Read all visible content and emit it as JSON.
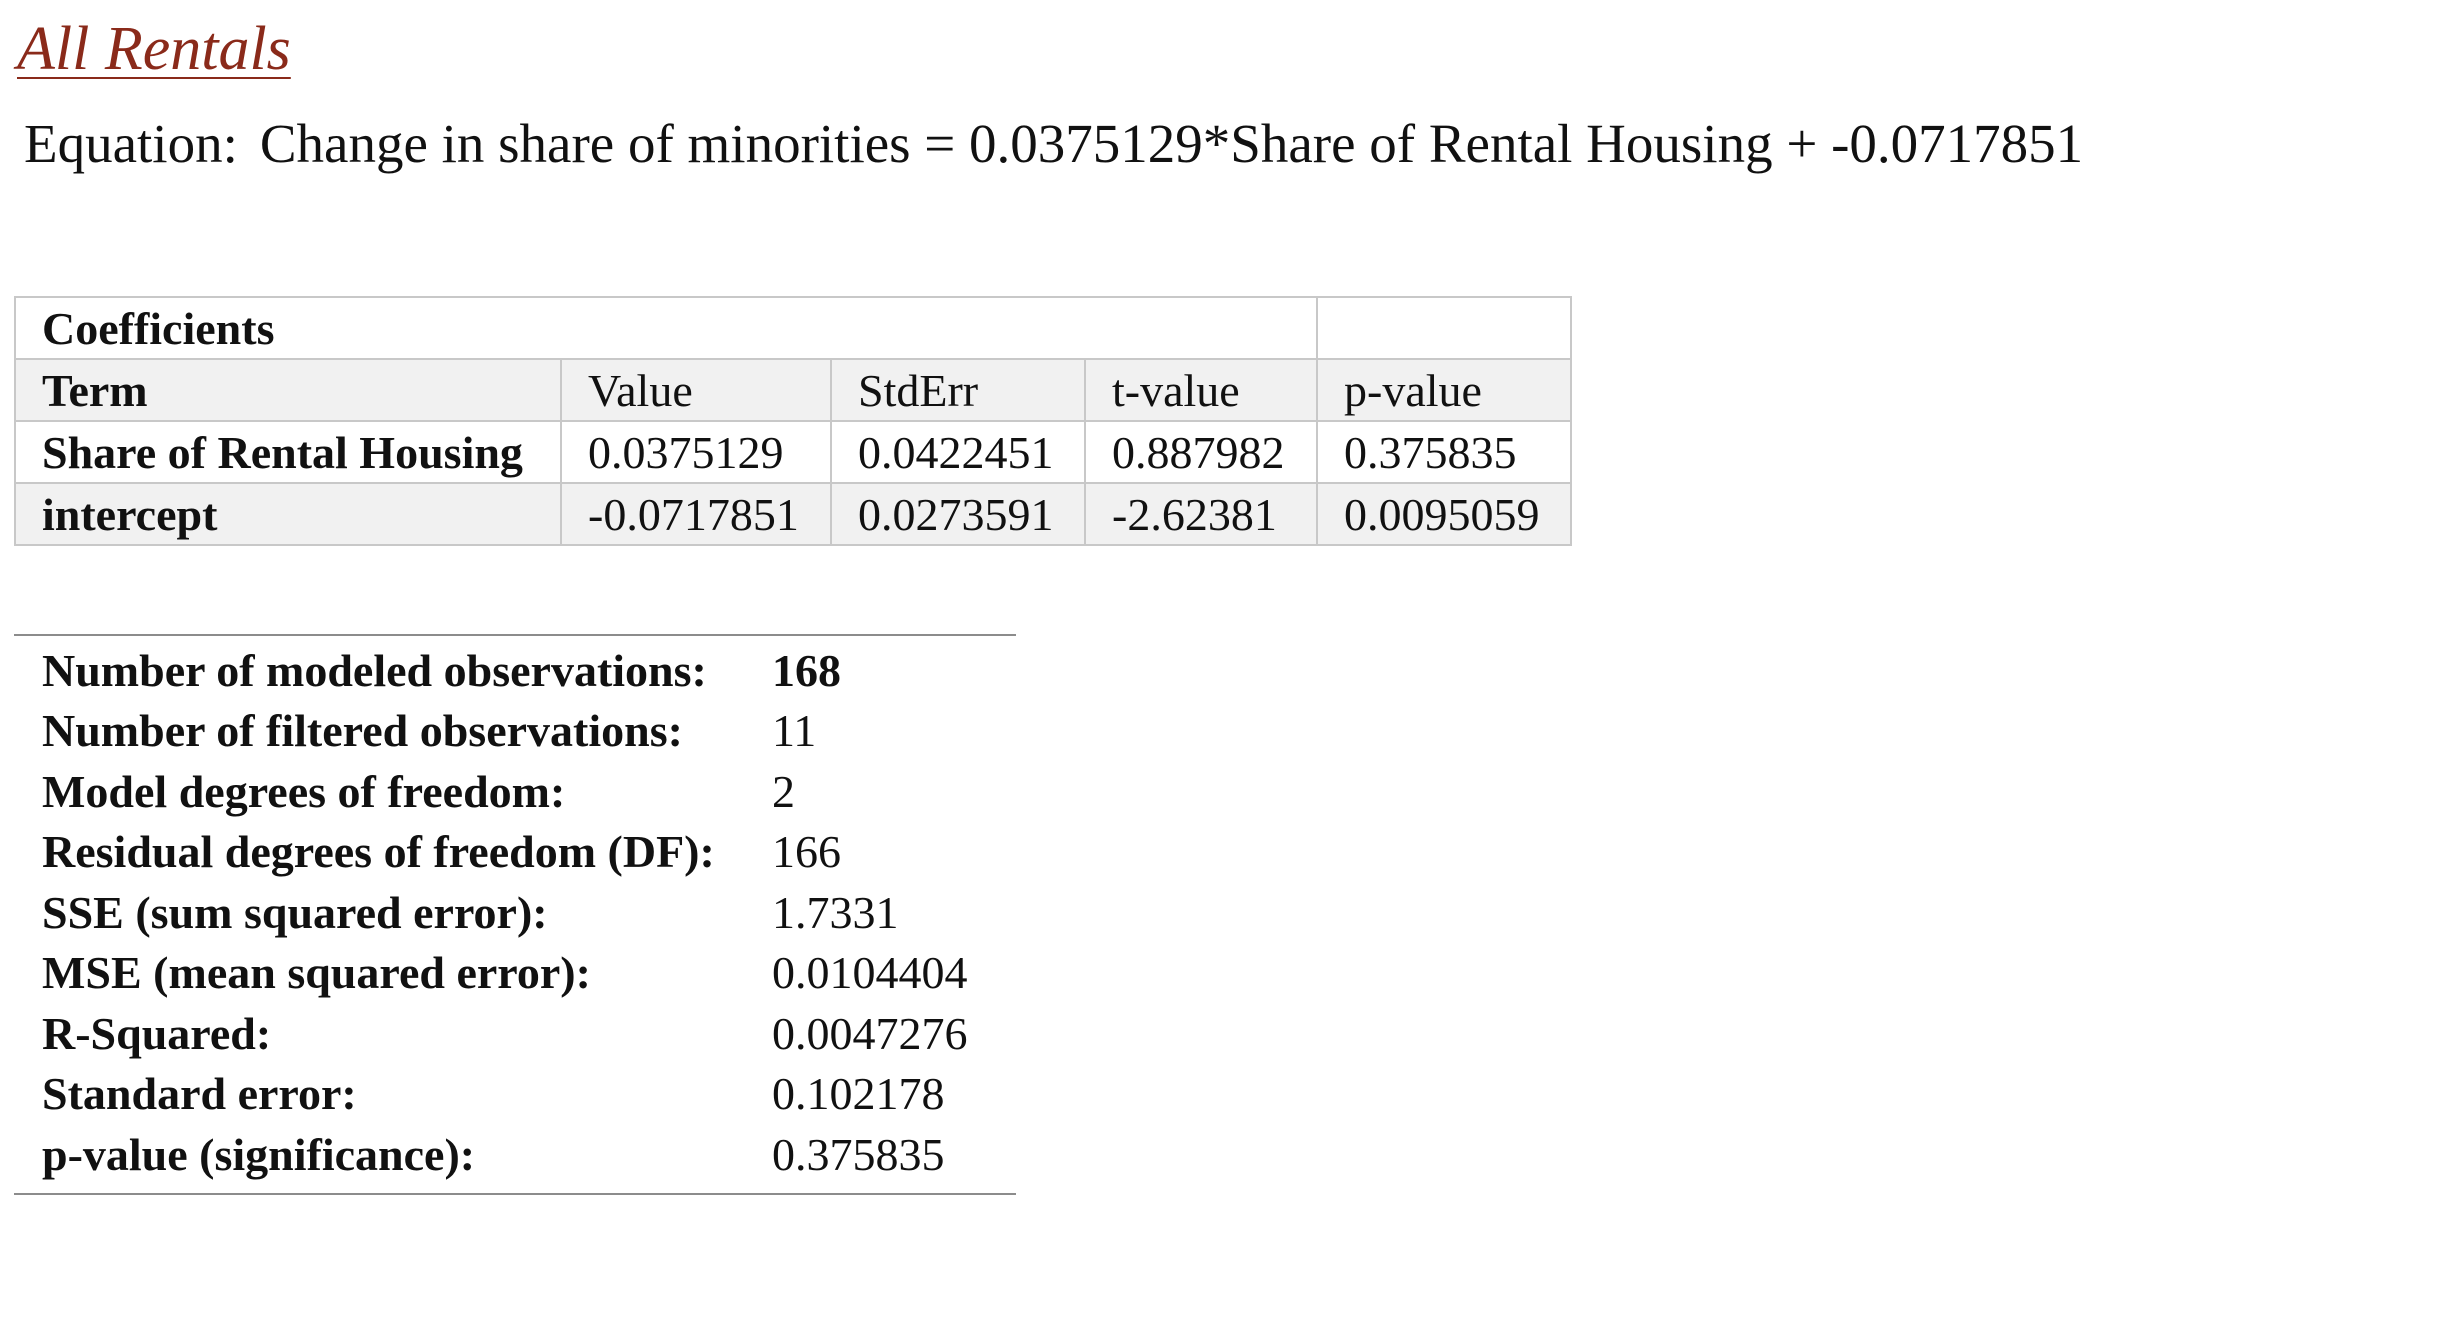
{
  "section": {
    "title": "All Rentals"
  },
  "equation": {
    "label": "Equation:",
    "text": "Change in share of minorities = 0.0375129*Share of Rental Housing + -0.0717851"
  },
  "coefficients": {
    "caption": "Coefficients",
    "headers": [
      "Term",
      "Value",
      "StdErr",
      "t-value",
      "p-value"
    ],
    "rows": [
      {
        "term": "Share of Rental Housing",
        "value": "0.0375129",
        "stderr": "0.0422451",
        "tvalue": "0.887982",
        "pvalue": "0.375835"
      },
      {
        "term": "intercept",
        "value": "-0.0717851",
        "stderr": "0.0273591",
        "tvalue": "-2.62381",
        "pvalue": "0.0095059"
      }
    ]
  },
  "summary": {
    "rows": [
      {
        "label": "Number of modeled observations:",
        "value": "168"
      },
      {
        "label": "Number of filtered observations:",
        "value": "11"
      },
      {
        "label": "Model degrees of freedom:",
        "value": "2"
      },
      {
        "label": "Residual degrees of freedom (DF):",
        "value": "166"
      },
      {
        "label": "SSE (sum squared error):",
        "value": "1.7331"
      },
      {
        "label": "MSE (mean squared error):",
        "value": "0.0104404"
      },
      {
        "label": "R-Squared:",
        "value": "0.0047276"
      },
      {
        "label": "Standard error:",
        "value": "0.102178"
      },
      {
        "label": "p-value (significance):",
        "value": "0.375835"
      }
    ]
  },
  "colors": {
    "link": "#8a2a1a",
    "header_bg": "#f1f1f1",
    "border": "#c8c8c8"
  }
}
